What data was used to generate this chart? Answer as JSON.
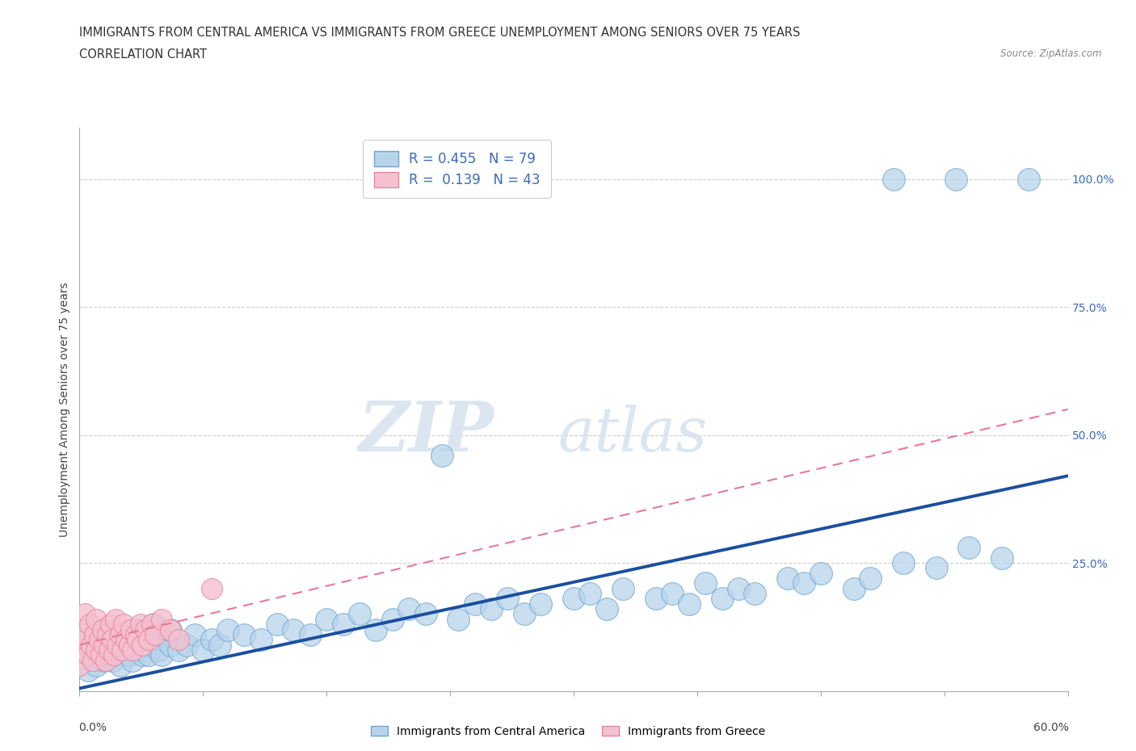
{
  "title_line1": "IMMIGRANTS FROM CENTRAL AMERICA VS IMMIGRANTS FROM GREECE UNEMPLOYMENT AMONG SENIORS OVER 75 YEARS",
  "title_line2": "CORRELATION CHART",
  "source": "Source: ZipAtlas.com",
  "ylabel": "Unemployment Among Seniors over 75 years",
  "right_yticks": [
    0.0,
    0.25,
    0.5,
    0.75,
    1.0
  ],
  "right_yticklabels": [
    "",
    "25.0%",
    "50.0%",
    "75.0%",
    "100.0%"
  ],
  "xlim": [
    0.0,
    0.6
  ],
  "ylim": [
    0.0,
    1.1
  ],
  "blue_color": "#b8d4ea",
  "blue_edge": "#6ea6d0",
  "pink_color": "#f5c0cf",
  "pink_edge": "#e8849e",
  "blue_line_color": "#1a4fa0",
  "pink_line_color": "#e87898",
  "watermark_zip": "ZIP",
  "watermark_atlas": "atlas",
  "title_fontsize": 10.5,
  "subtitle_fontsize": 10.5,
  "axis_label_fontsize": 10,
  "tick_fontsize": 10,
  "blue_scatter_x": [
    0.005,
    0.008,
    0.01,
    0.012,
    0.015,
    0.015,
    0.018,
    0.02,
    0.02,
    0.022,
    0.025,
    0.025,
    0.028,
    0.03,
    0.03,
    0.032,
    0.035,
    0.035,
    0.038,
    0.04,
    0.04,
    0.042,
    0.045,
    0.045,
    0.048,
    0.05,
    0.05,
    0.055,
    0.055,
    0.06,
    0.065,
    0.07,
    0.075,
    0.08,
    0.085,
    0.09,
    0.1,
    0.11,
    0.12,
    0.13,
    0.14,
    0.15,
    0.16,
    0.17,
    0.18,
    0.19,
    0.2,
    0.21,
    0.22,
    0.23,
    0.24,
    0.25,
    0.26,
    0.27,
    0.28,
    0.3,
    0.31,
    0.32,
    0.33,
    0.35,
    0.36,
    0.37,
    0.38,
    0.39,
    0.4,
    0.41,
    0.43,
    0.44,
    0.45,
    0.47,
    0.48,
    0.5,
    0.52,
    0.54,
    0.56,
    0.494,
    0.532,
    0.576
  ],
  "blue_scatter_y": [
    0.04,
    0.07,
    0.05,
    0.09,
    0.06,
    0.11,
    0.08,
    0.06,
    0.1,
    0.07,
    0.09,
    0.05,
    0.08,
    0.07,
    0.1,
    0.06,
    0.08,
    0.12,
    0.07,
    0.09,
    0.11,
    0.07,
    0.1,
    0.13,
    0.08,
    0.1,
    0.07,
    0.09,
    0.12,
    0.08,
    0.09,
    0.11,
    0.08,
    0.1,
    0.09,
    0.12,
    0.11,
    0.1,
    0.13,
    0.12,
    0.11,
    0.14,
    0.13,
    0.15,
    0.12,
    0.14,
    0.16,
    0.15,
    0.46,
    0.14,
    0.17,
    0.16,
    0.18,
    0.15,
    0.17,
    0.18,
    0.19,
    0.16,
    0.2,
    0.18,
    0.19,
    0.17,
    0.21,
    0.18,
    0.2,
    0.19,
    0.22,
    0.21,
    0.23,
    0.2,
    0.22,
    0.25,
    0.24,
    0.28,
    0.26,
    1.0,
    1.0,
    1.0
  ],
  "pink_scatter_x": [
    0.0,
    0.001,
    0.002,
    0.003,
    0.004,
    0.005,
    0.006,
    0.007,
    0.008,
    0.009,
    0.01,
    0.01,
    0.012,
    0.013,
    0.014,
    0.015,
    0.016,
    0.017,
    0.018,
    0.019,
    0.02,
    0.021,
    0.022,
    0.023,
    0.025,
    0.026,
    0.027,
    0.028,
    0.03,
    0.031,
    0.032,
    0.034,
    0.035,
    0.037,
    0.038,
    0.04,
    0.042,
    0.044,
    0.046,
    0.05,
    0.055,
    0.06,
    0.08
  ],
  "pink_scatter_y": [
    0.05,
    0.12,
    0.08,
    0.15,
    0.1,
    0.07,
    0.13,
    0.09,
    0.06,
    0.11,
    0.08,
    0.14,
    0.1,
    0.07,
    0.12,
    0.09,
    0.06,
    0.11,
    0.08,
    0.13,
    0.1,
    0.07,
    0.14,
    0.09,
    0.11,
    0.08,
    0.13,
    0.1,
    0.09,
    0.12,
    0.08,
    0.11,
    0.1,
    0.13,
    0.09,
    0.12,
    0.1,
    0.13,
    0.11,
    0.14,
    0.12,
    0.1,
    0.2
  ],
  "blue_line_x": [
    0.0,
    0.6
  ],
  "blue_line_y": [
    0.005,
    0.42
  ],
  "pink_line_x": [
    0.0,
    0.6
  ],
  "pink_line_y": [
    0.09,
    0.55
  ]
}
